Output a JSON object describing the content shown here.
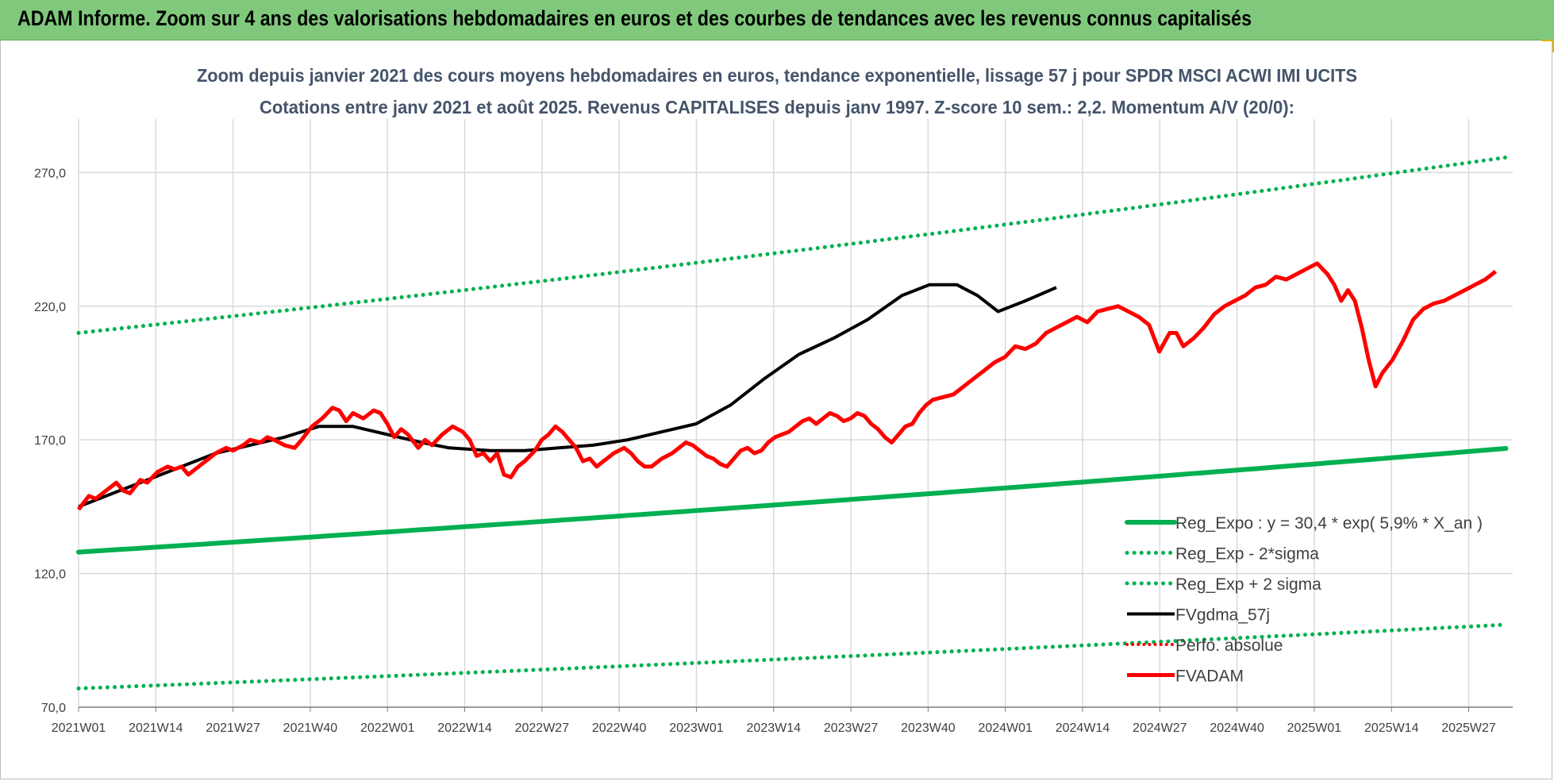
{
  "header": {
    "title": "ADAM Informe. Zoom sur 4 ans des valorisations hebdomadaires en euros et des courbes de tendances avec les revenus connus capitalisés"
  },
  "chart_data": {
    "type": "line",
    "title": "Zoom depuis janvier 2021 des cours moyens hebdomadaires en euros, tendance exponentielle, lissage 57 j pour SPDR MSCI ACWI IMI UCITS",
    "subtitle": "Cotations entre janv 2021 et août 2025. Revenus CAPITALISES depuis janv 1997. Z-score 10 sem.: 2,2. Momentum A/V (20/0):",
    "x_ticks": [
      "2021W01",
      "2021W14",
      "2021W27",
      "2021W40",
      "2022W01",
      "2022W14",
      "2022W27",
      "2022W40",
      "2023W01",
      "2023W14",
      "2023W27",
      "2023W40",
      "2024W01",
      "2024W14",
      "2024W27",
      "2024W40",
      "2025W01",
      "2025W14",
      "2025W27"
    ],
    "y_ticks": [
      "70,0",
      "120,0",
      "170,0",
      "220,0",
      "270,0"
    ],
    "ylim": [
      70,
      290
    ],
    "x_range_weeks": [
      0,
      243
    ],
    "grid": true,
    "legend_position": "bottom-right",
    "colors": {
      "reg_expo": "#00b050",
      "sigma_minus": "#00b050",
      "sigma_plus": "#00b050",
      "fvgdma": "#000000",
      "perfo": "#ff0000",
      "fvadam": "#ff0000",
      "grid": "#d9d9d9"
    },
    "legend": [
      {
        "key": "reg_expo",
        "label": "Reg_Expo : y = 30,4 * exp( 5,9% *  X_an )"
      },
      {
        "key": "sigma_minus",
        "label": "Reg_Exp - 2*sigma"
      },
      {
        "key": "sigma_plus",
        "label": "Reg_Exp + 2 sigma"
      },
      {
        "key": "fvgdma",
        "label": "FVgdma_57j"
      },
      {
        "key": "perfo",
        "label": "Perfo. absolue"
      },
      {
        "key": "fvadam",
        "label": "FVADAM"
      }
    ],
    "series": [
      {
        "key": "reg_expo",
        "name": "Reg_Expo : y = 30,4 * exp( 5,9% *  X_an )",
        "style": "solid-thick",
        "points": [
          [
            0,
            128
          ],
          [
            243,
            167
          ]
        ]
      },
      {
        "key": "sigma_minus",
        "name": "Reg_Exp - 2*sigma",
        "style": "dotted",
        "points": [
          [
            0,
            77
          ],
          [
            243,
            101
          ]
        ]
      },
      {
        "key": "sigma_plus",
        "name": "Reg_Exp + 2 sigma",
        "style": "dotted",
        "points": [
          [
            0,
            210
          ],
          [
            243,
            276
          ]
        ]
      },
      {
        "key": "fvgdma",
        "name": "FVgdma_57j",
        "style": "solid",
        "points": [
          [
            0,
            145
          ],
          [
            10,
            150
          ],
          [
            20,
            155
          ],
          [
            30,
            160
          ],
          [
            40,
            165
          ],
          [
            50,
            168
          ],
          [
            60,
            171
          ],
          [
            65,
            173
          ],
          [
            70,
            175
          ],
          [
            80,
            175
          ],
          [
            90,
            172
          ],
          [
            100,
            169
          ],
          [
            108,
            167
          ],
          [
            120,
            166
          ],
          [
            130,
            166
          ],
          [
            140,
            167
          ],
          [
            150,
            168
          ],
          [
            160,
            170
          ],
          [
            170,
            173
          ],
          [
            180,
            176
          ],
          [
            190,
            183
          ],
          [
            200,
            193
          ],
          [
            210,
            202
          ],
          [
            220,
            208
          ],
          [
            230,
            215
          ],
          [
            240,
            224
          ],
          [
            248,
            228
          ],
          [
            256,
            228
          ],
          [
            262,
            224
          ],
          [
            268,
            218
          ],
          [
            276,
            222
          ],
          [
            285,
            227
          ]
        ]
      },
      {
        "key": "fvadam",
        "name": "FVADAM",
        "style": "solid-thick",
        "points": [
          [
            0,
            144
          ],
          [
            3,
            149
          ],
          [
            5,
            148
          ],
          [
            8,
            151
          ],
          [
            11,
            154
          ],
          [
            13,
            151
          ],
          [
            15,
            150
          ],
          [
            18,
            155
          ],
          [
            20,
            154
          ],
          [
            23,
            158
          ],
          [
            26,
            160
          ],
          [
            28,
            159
          ],
          [
            30,
            160
          ],
          [
            32,
            157
          ],
          [
            34,
            159
          ],
          [
            37,
            162
          ],
          [
            40,
            165
          ],
          [
            43,
            167
          ],
          [
            45,
            166
          ],
          [
            48,
            168
          ],
          [
            50,
            170
          ],
          [
            53,
            169
          ],
          [
            55,
            171
          ],
          [
            57,
            170
          ],
          [
            60,
            168
          ],
          [
            63,
            167
          ],
          [
            65,
            170
          ],
          [
            68,
            175
          ],
          [
            71,
            178
          ],
          [
            74,
            182
          ],
          [
            76,
            181
          ],
          [
            78,
            177
          ],
          [
            80,
            180
          ],
          [
            83,
            178
          ],
          [
            86,
            181
          ],
          [
            88,
            180
          ],
          [
            90,
            176
          ],
          [
            92,
            171
          ],
          [
            94,
            174
          ],
          [
            96,
            172
          ],
          [
            99,
            167
          ],
          [
            101,
            170
          ],
          [
            103,
            168
          ],
          [
            106,
            172
          ],
          [
            109,
            175
          ],
          [
            112,
            173
          ],
          [
            114,
            170
          ],
          [
            116,
            164
          ],
          [
            118,
            165
          ],
          [
            120,
            162
          ],
          [
            122,
            165
          ],
          [
            124,
            157
          ],
          [
            126,
            156
          ],
          [
            128,
            160
          ],
          [
            130,
            162
          ],
          [
            133,
            166
          ],
          [
            135,
            170
          ],
          [
            137,
            172
          ],
          [
            139,
            175
          ],
          [
            141,
            173
          ],
          [
            143,
            170
          ],
          [
            145,
            167
          ],
          [
            147,
            162
          ],
          [
            149,
            163
          ],
          [
            151,
            160
          ],
          [
            153,
            162
          ],
          [
            156,
            165
          ],
          [
            159,
            167
          ],
          [
            161,
            165
          ],
          [
            163,
            162
          ],
          [
            165,
            160
          ],
          [
            167,
            160
          ],
          [
            170,
            163
          ],
          [
            173,
            165
          ],
          [
            175,
            167
          ],
          [
            177,
            169
          ],
          [
            179,
            168
          ],
          [
            181,
            166
          ],
          [
            183,
            164
          ],
          [
            185,
            163
          ],
          [
            187,
            161
          ],
          [
            189,
            160
          ],
          [
            191,
            163
          ],
          [
            193,
            166
          ],
          [
            195,
            167
          ],
          [
            197,
            165
          ],
          [
            199,
            166
          ],
          [
            201,
            169
          ],
          [
            203,
            171
          ],
          [
            205,
            172
          ],
          [
            207,
            173
          ],
          [
            209,
            175
          ],
          [
            211,
            177
          ],
          [
            213,
            178
          ],
          [
            215,
            176
          ],
          [
            217,
            178
          ],
          [
            219,
            180
          ],
          [
            221,
            179
          ],
          [
            223,
            177
          ],
          [
            225,
            178
          ],
          [
            227,
            180
          ],
          [
            229,
            179
          ],
          [
            231,
            176
          ],
          [
            233,
            174
          ],
          [
            235,
            171
          ],
          [
            237,
            169
          ],
          [
            239,
            172
          ],
          [
            241,
            175
          ],
          [
            243,
            176
          ],
          [
            245,
            180
          ],
          [
            247,
            183
          ],
          [
            249,
            185
          ],
          [
            252,
            186
          ],
          [
            255,
            187
          ],
          [
            258,
            190
          ],
          [
            261,
            193
          ],
          [
            264,
            196
          ],
          [
            267,
            199
          ],
          [
            270,
            201
          ],
          [
            273,
            205
          ],
          [
            276,
            204
          ],
          [
            279,
            206
          ],
          [
            282,
            210
          ],
          [
            285,
            212
          ],
          [
            288,
            214
          ],
          [
            291,
            216
          ],
          [
            294,
            214
          ],
          [
            297,
            218
          ],
          [
            300,
            219
          ],
          [
            303,
            220
          ],
          [
            306,
            218
          ],
          [
            309,
            216
          ],
          [
            312,
            213
          ],
          [
            315,
            203
          ],
          [
            318,
            210
          ],
          [
            320,
            210
          ],
          [
            322,
            205
          ],
          [
            325,
            208
          ],
          [
            328,
            212
          ],
          [
            331,
            217
          ],
          [
            334,
            220
          ],
          [
            337,
            222
          ],
          [
            340,
            224
          ],
          [
            343,
            227
          ],
          [
            346,
            228
          ],
          [
            349,
            231
          ],
          [
            352,
            230
          ],
          [
            355,
            232
          ],
          [
            358,
            234
          ],
          [
            361,
            236
          ],
          [
            364,
            232
          ],
          [
            366,
            228
          ],
          [
            368,
            222
          ],
          [
            370,
            226
          ],
          [
            372,
            222
          ],
          [
            374,
            212
          ],
          [
            376,
            200
          ],
          [
            378,
            190
          ],
          [
            380,
            195
          ],
          [
            383,
            200
          ],
          [
            386,
            207
          ],
          [
            389,
            215
          ],
          [
            392,
            219
          ],
          [
            395,
            221
          ],
          [
            398,
            222
          ],
          [
            401,
            224
          ],
          [
            404,
            226
          ],
          [
            407,
            228
          ],
          [
            410,
            230
          ],
          [
            413,
            233
          ]
        ]
      }
    ]
  }
}
